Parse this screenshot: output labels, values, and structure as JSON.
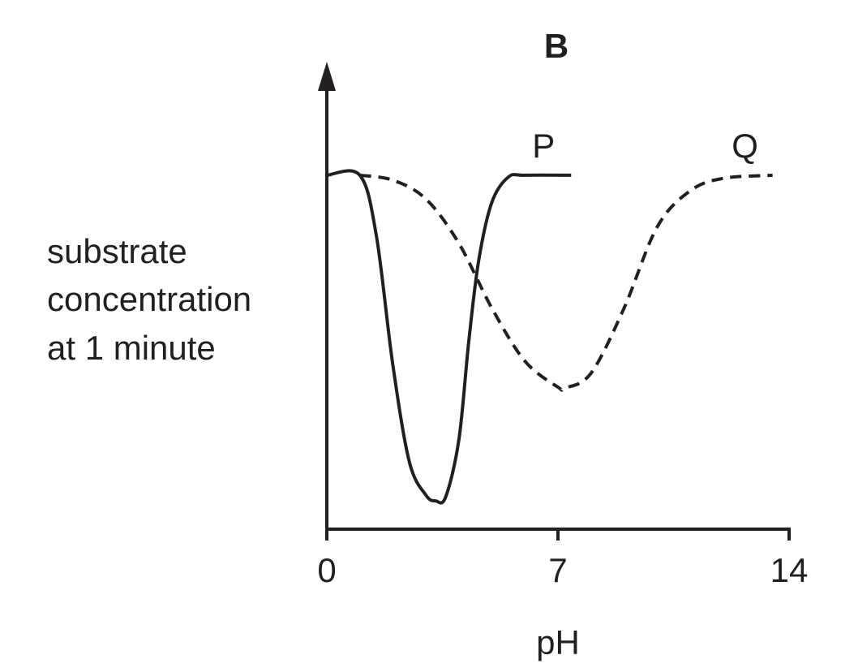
{
  "chart_data": {
    "type": "line",
    "title": "B",
    "xlabel": "pH",
    "ylabel": [
      "substrate",
      "concentration",
      "at 1 minute"
    ],
    "xlim": [
      0,
      14
    ],
    "xticks": [
      0,
      7,
      14
    ],
    "ylim": [
      0,
      10
    ],
    "series": [
      {
        "name": "P",
        "color": "#231f20",
        "dashed": false,
        "x": [
          0,
          1,
          1.5,
          2,
          2.5,
          3,
          3.3,
          3.6,
          4,
          4.3,
          4.6,
          5,
          5.5,
          6,
          7.4
        ],
        "values": [
          7.9,
          7.9,
          6.55,
          3.66,
          1.5,
          0.76,
          0.63,
          0.72,
          2.0,
          4.2,
          6.0,
          7.3,
          7.86,
          7.9,
          7.9
        ]
      },
      {
        "name": "Q",
        "color": "#231f20",
        "dashed": true,
        "x": [
          1,
          2,
          3,
          4,
          5,
          6,
          7,
          7.2,
          8,
          9,
          10,
          11,
          12,
          13.5
        ],
        "values": [
          7.9,
          7.79,
          7.37,
          6.38,
          4.93,
          3.75,
          3.17,
          3.15,
          3.48,
          4.93,
          6.74,
          7.55,
          7.83,
          7.9
        ]
      }
    ]
  }
}
